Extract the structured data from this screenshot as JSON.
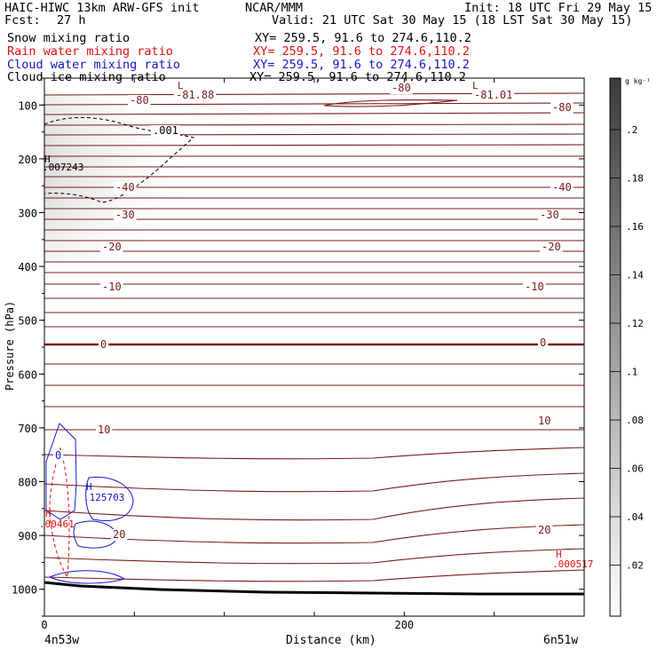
{
  "header": {
    "model": "HAIC-HIWC 13km ARW-GFS init",
    "org": "NCAR/MMM",
    "init": "Init: 18 UTC Fri 29 May 15",
    "fcst_label": "Fcst:",
    "fcst_value": "27 h",
    "valid": "Valid: 21 UTC Sat 30 May 15 (18 LST Sat 30 May 15)",
    "fields": [
      {
        "name": "Snow mixing ratio",
        "xy": "XY= 259.5, 91.6 to 274.6,110.2",
        "color": "#000000"
      },
      {
        "name": "Rain water mixing ratio",
        "xy": "XY= 259.5, 91.6 to 274.6,110.2",
        "color": "#e01010"
      },
      {
        "name": "Cloud water mixing ratio",
        "xy": "XY= 259.5, 91.6 to 274.6,110.2",
        "color": "#1515d0"
      },
      {
        "name": "Cloud ice mixing ratio",
        "xy": "XY= 259.5, 91.6 to 274.6,110.2",
        "color": "#000000"
      }
    ]
  },
  "chart_data": {
    "type": "contour",
    "xlabel": "Distance (km)",
    "ylabel": "Pressure (hPa)",
    "x_ticks": [
      0,
      200
    ],
    "xlim": [
      0,
      300
    ],
    "y_ticks": [
      100,
      200,
      300,
      400,
      500,
      600,
      700,
      800,
      900,
      1000
    ],
    "ylim": [
      1050,
      50
    ],
    "x_start_label": "4n53w",
    "x_end_label": "6n51w",
    "colorbar": {
      "unit": "g kg⁻¹",
      "ticks": [
        ".2",
        ".18",
        ".16",
        ".14",
        ".12",
        ".1",
        ".08",
        ".06",
        ".04",
        ".02"
      ]
    },
    "isotherm_labels": [
      "-80",
      "-40",
      "-30",
      "-20",
      "-10",
      "0",
      "10",
      "20"
    ],
    "highs_lows": [
      {
        "type": "L",
        "value": "-81.88"
      },
      {
        "type": "L",
        "value": "-81.01"
      },
      {
        "type": "H",
        "value": ".007243"
      },
      {
        "type": "H",
        "value": ".125703"
      },
      {
        "type": "H",
        "value": ".00461"
      },
      {
        "type": "H",
        "value": ".000517"
      }
    ],
    "contour_labels": [
      ".001",
      "0"
    ]
  }
}
